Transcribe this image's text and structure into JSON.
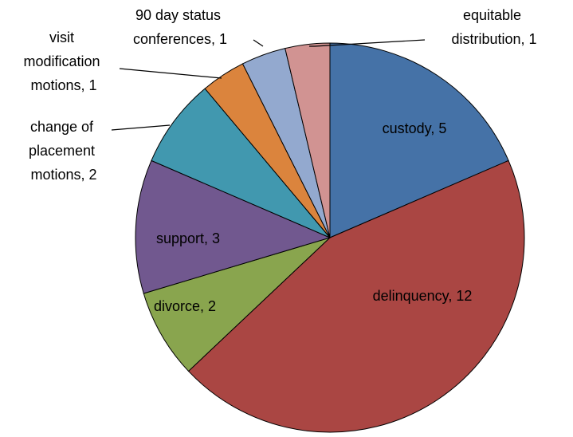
{
  "chart_data": {
    "type": "pie",
    "values": [
      5,
      12,
      2,
      3,
      2,
      1,
      1,
      1
    ],
    "value_labels": [
      "custody, 5",
      "delinquency, 12",
      "divorce, 2",
      "support, 3",
      "change of placement motions, 2",
      "visit modification motions, 1",
      "90 day status conferences, 1",
      "equitable distribution, 1"
    ],
    "colors": [
      "#4572A7",
      "#AA4643",
      "#89A54E",
      "#71588F",
      "#4198AF",
      "#DB843D",
      "#93A9CF",
      "#D19392"
    ]
  }
}
